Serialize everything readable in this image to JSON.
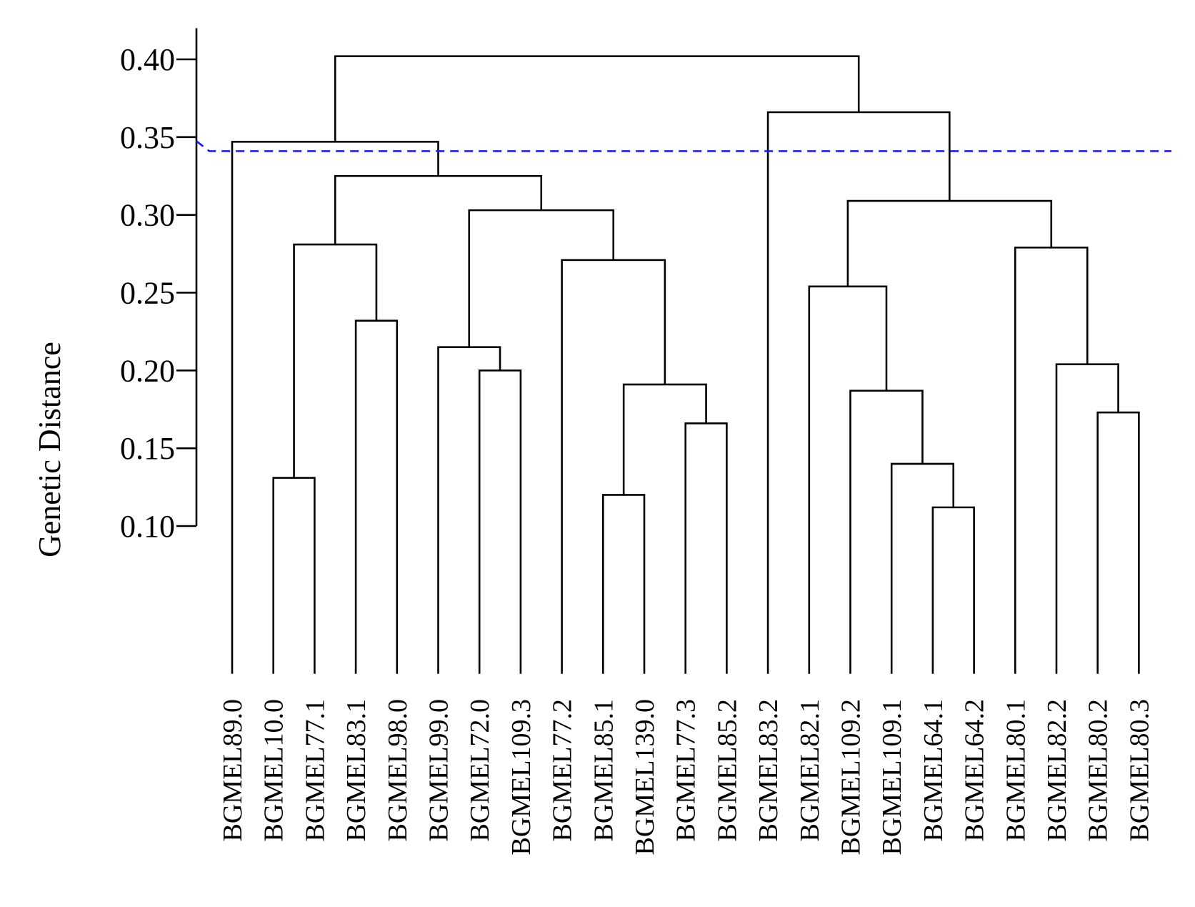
{
  "chart_data": {
    "type": "dendrogram",
    "ylabel": "Genetic Distance",
    "yticks": [
      "0.10",
      "0.15",
      "0.20",
      "0.25",
      "0.30",
      "0.35",
      "0.40"
    ],
    "leaves": [
      "BGMEL89.0",
      "BGMEL10.0",
      "BGMEL77.1",
      "BGMEL83.1",
      "BGMEL98.0",
      "BGMEL99.0",
      "BGMEL72.0",
      "BGMEL109.3",
      "BGMEL77.2",
      "BGMEL85.1",
      "BGMEL139.0",
      "BGMEL77.3",
      "BGMEL85.2",
      "BGMEL83.2",
      "BGMEL82.1",
      "BGMEL109.2",
      "BGMEL109.1",
      "BGMEL64.1",
      "BGMEL64.2",
      "BGMEL80.1",
      "BGMEL82.2",
      "BGMEL80.2",
      "BGMEL80.3"
    ],
    "merges": [
      {
        "id": "m1",
        "left": "BGMEL10.0",
        "right": "BGMEL77.1",
        "height": 0.131
      },
      {
        "id": "m2",
        "left": "BGMEL83.1",
        "right": "BGMEL98.0",
        "height": 0.232
      },
      {
        "id": "m3",
        "left": "m1",
        "right": "m2",
        "height": 0.281
      },
      {
        "id": "m4",
        "left": "BGMEL72.0",
        "right": "BGMEL109.3",
        "height": 0.2
      },
      {
        "id": "m5",
        "left": "BGMEL99.0",
        "right": "m4",
        "height": 0.215
      },
      {
        "id": "m6",
        "left": "BGMEL85.1",
        "right": "BGMEL139.0",
        "height": 0.12
      },
      {
        "id": "m7",
        "left": "BGMEL77.3",
        "right": "BGMEL85.2",
        "height": 0.166
      },
      {
        "id": "m8",
        "left": "m6",
        "right": "m7",
        "height": 0.191
      },
      {
        "id": "m9",
        "left": "BGMEL77.2",
        "right": "m8",
        "height": 0.271
      },
      {
        "id": "m10",
        "left": "m5",
        "right": "m9",
        "height": 0.303
      },
      {
        "id": "m11",
        "left": "m3",
        "right": "m10",
        "height": 0.325
      },
      {
        "id": "m12",
        "left": "BGMEL89.0",
        "right": "m11",
        "height": 0.347
      },
      {
        "id": "m13",
        "left": "BGMEL64.1",
        "right": "BGMEL64.2",
        "height": 0.112
      },
      {
        "id": "m14",
        "left": "BGMEL109.1",
        "right": "m13",
        "height": 0.14
      },
      {
        "id": "m15",
        "left": "BGMEL109.2",
        "right": "m14",
        "height": 0.187
      },
      {
        "id": "m16",
        "left": "BGMEL82.1",
        "right": "m15",
        "height": 0.254
      },
      {
        "id": "m17",
        "left": "BGMEL80.2",
        "right": "BGMEL80.3",
        "height": 0.173
      },
      {
        "id": "m18",
        "left": "BGMEL82.2",
        "right": "m17",
        "height": 0.204
      },
      {
        "id": "m19",
        "left": "BGMEL80.1",
        "right": "m18",
        "height": 0.279
      },
      {
        "id": "m20",
        "left": "m16",
        "right": "m19",
        "height": 0.309
      },
      {
        "id": "m21",
        "left": "BGMEL83.2",
        "right": "m20",
        "height": 0.366
      },
      {
        "id": "m22",
        "left": "m12",
        "right": "m21",
        "height": 0.402
      }
    ],
    "leaf_height": 0.005,
    "axis_range": [
      0.1,
      0.42
    ],
    "cut_height": 0.341,
    "cut_color": "#1a1aff",
    "branch_color": "#000000",
    "grid": false,
    "legend": "none"
  }
}
